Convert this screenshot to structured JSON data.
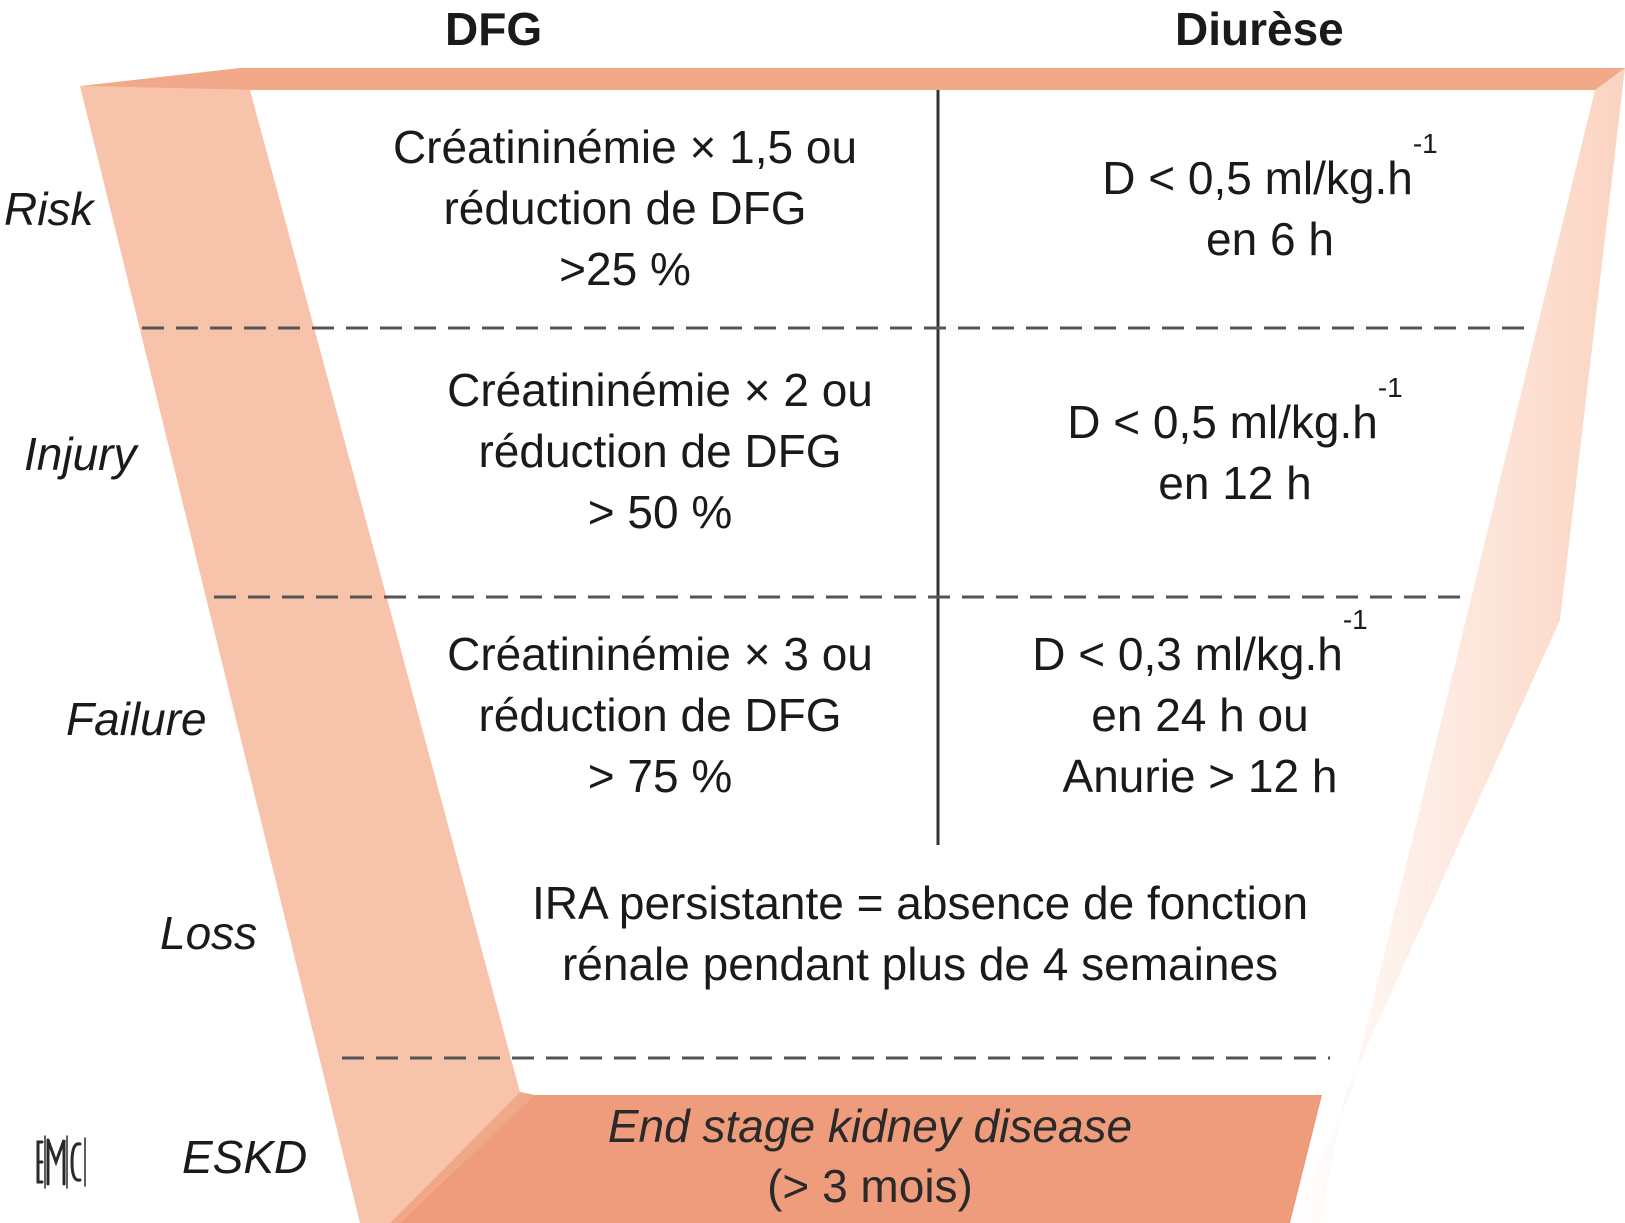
{
  "headers": {
    "gfr": "DFG",
    "urine": "Diurèse"
  },
  "stages": [
    {
      "name": "Risk",
      "gfr_lines": [
        "Créatininémie × 1,5 ou",
        "réduction de DFG",
        ">25 %"
      ],
      "urine_lines": [
        {
          "text": "D < 0,5 ml/kg.h",
          "sup": "-1"
        },
        {
          "text": "en 6 h",
          "sup": ""
        }
      ]
    },
    {
      "name": "Injury",
      "gfr_lines": [
        "Créatininémie × 2 ou",
        "réduction de DFG",
        "> 50 %"
      ],
      "urine_lines": [
        {
          "text": "D < 0,5 ml/kg.h",
          "sup": "-1"
        },
        {
          "text": "en 12 h",
          "sup": ""
        }
      ]
    },
    {
      "name": "Failure",
      "gfr_lines": [
        "Créatininémie × 3 ou",
        "réduction de DFG",
        "> 75 %"
      ],
      "urine_lines": [
        {
          "text": "D < 0,3 ml/kg.h",
          "sup": "-1"
        },
        {
          "text": "en 24 h ou",
          "sup": ""
        },
        {
          "text": "Anurie > 12 h",
          "sup": ""
        }
      ]
    },
    {
      "name": "Loss",
      "merged_lines": [
        "IRA persistante = absence de fonction",
        "rénale pendant plus de 4 semaines"
      ]
    },
    {
      "name": "ESKD",
      "merged_lines": [
        "End stage kidney disease",
        "(> 3 mois)"
      ]
    }
  ],
  "logo_text": "EMC",
  "colors": {
    "funnel_light": "#f7c3ab",
    "funnel_top": "#f2a98a",
    "funnel_bottom": "#ef9c7d",
    "funnel_right_edge": "#fde1d4",
    "text": "#1a1a1a",
    "divider": "#555555"
  }
}
